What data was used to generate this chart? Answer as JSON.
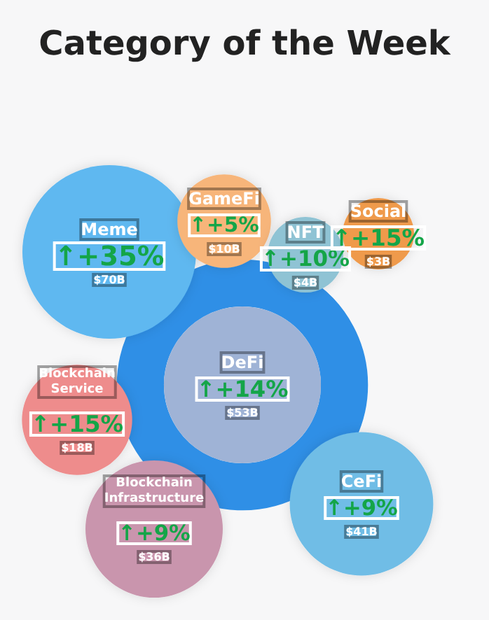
{
  "chart_data": {
    "type": "other",
    "title": "Category of the Week",
    "categories": [
      "Meme",
      "GameFi",
      "NFT",
      "Social",
      "DeFi",
      "Blockchain Service",
      "Blockchain Infrastructure",
      "CeFi"
    ],
    "series": [
      {
        "colors": [
          "#5fb8f0",
          "#f7b57a",
          "#8fc3d4",
          "#ef9a4c",
          "#9fb3d6",
          "#ee8c8c",
          "#c995ad",
          "#6fbde6"
        ],
        "values": [
          35,
          5,
          10,
          15,
          14,
          15,
          9,
          9
        ],
        "value_labels": [
          "↑+35%",
          "↑+5%",
          "↑+10%",
          "↑+15%",
          "↑+14%",
          "↑+15%",
          "↑+9%",
          "↑+9%"
        ]
      },
      {
        "values": [
          70,
          10,
          4,
          3,
          53,
          18,
          36,
          41
        ],
        "value_labels": [
          "$70B",
          "$10B",
          "$4B",
          "$3B",
          "$53B",
          "$18B",
          "$36B",
          "$41B"
        ]
      }
    ]
  }
}
